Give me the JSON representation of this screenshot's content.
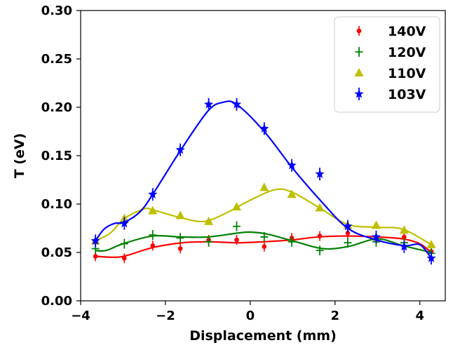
{
  "chart_data": {
    "type": "scatter",
    "title": "",
    "xlabel": "Displacement (mm)",
    "ylabel": "T (eV)",
    "xlim": [
      -4,
      4.6
    ],
    "ylim": [
      0.0,
      0.3
    ],
    "xticks": [
      -4,
      -2,
      0,
      2,
      4
    ],
    "xtick_labels": [
      "−4",
      "−2",
      "0",
      "2",
      "4"
    ],
    "yticks": [
      0.0,
      0.05,
      0.1,
      0.15,
      0.2,
      0.25,
      0.3
    ],
    "ytick_labels": [
      "0.00",
      "0.05",
      "0.10",
      "0.15",
      "0.20",
      "0.25",
      "0.30"
    ],
    "grid": false,
    "legend_position": "top-right",
    "x": [
      -3.65,
      -2.97,
      -2.3,
      -1.65,
      -0.98,
      -0.32,
      0.33,
      0.98,
      1.64,
      2.3,
      2.97,
      3.63,
      4.27
    ],
    "series": [
      {
        "name": "140V",
        "color": "#ff0000",
        "marker": "dot",
        "values": [
          0.046,
          0.044,
          0.057,
          0.054,
          0.063,
          0.063,
          0.056,
          0.065,
          0.067,
          0.07,
          0.064,
          0.066,
          0.051
        ],
        "fit": [
          [
            -3.65,
            0.046
          ],
          [
            -3.2,
            0.045
          ],
          [
            -2.9,
            0.047
          ],
          [
            -2.3,
            0.055
          ],
          [
            -1.6,
            0.06
          ],
          [
            -1.0,
            0.061
          ],
          [
            -0.3,
            0.06
          ],
          [
            0.3,
            0.061
          ],
          [
            1.0,
            0.063
          ],
          [
            1.6,
            0.066
          ],
          [
            2.3,
            0.067
          ],
          [
            3.0,
            0.066
          ],
          [
            3.6,
            0.064
          ],
          [
            4.0,
            0.059
          ],
          [
            4.27,
            0.05
          ]
        ]
      },
      {
        "name": "120V",
        "color": "#008000",
        "marker": "plus",
        "values": [
          0.054,
          0.059,
          0.068,
          0.065,
          0.061,
          0.077,
          0.066,
          0.061,
          0.052,
          0.06,
          0.061,
          0.06,
          0.049
        ],
        "fit": [
          [
            -3.65,
            0.052
          ],
          [
            -3.4,
            0.052
          ],
          [
            -3.0,
            0.059
          ],
          [
            -2.3,
            0.067
          ],
          [
            -1.65,
            0.066
          ],
          [
            -1.0,
            0.066
          ],
          [
            -0.3,
            0.07
          ],
          [
            0.0,
            0.071
          ],
          [
            0.4,
            0.069
          ],
          [
            1.0,
            0.062
          ],
          [
            1.7,
            0.054
          ],
          [
            2.3,
            0.056
          ],
          [
            3.0,
            0.064
          ],
          [
            3.6,
            0.057
          ],
          [
            4.27,
            0.05
          ]
        ]
      },
      {
        "name": "110V",
        "color": "#bfbf00",
        "marker": "triangle",
        "values": [
          0.062,
          0.085,
          0.093,
          0.088,
          0.082,
          0.097,
          0.117,
          0.11,
          0.096,
          0.078,
          0.078,
          0.073,
          0.058
        ],
        "fit": [
          [
            -3.65,
            0.062
          ],
          [
            -3.3,
            0.07
          ],
          [
            -2.97,
            0.085
          ],
          [
            -2.5,
            0.095
          ],
          [
            -2.3,
            0.094
          ],
          [
            -1.65,
            0.086
          ],
          [
            -1.1,
            0.082
          ],
          [
            -0.6,
            0.09
          ],
          [
            0.0,
            0.104
          ],
          [
            0.6,
            0.115
          ],
          [
            1.0,
            0.112
          ],
          [
            1.6,
            0.097
          ],
          [
            2.3,
            0.079
          ],
          [
            3.0,
            0.076
          ],
          [
            3.6,
            0.074
          ],
          [
            4.27,
            0.058
          ]
        ]
      },
      {
        "name": "103V",
        "color": "#0000ff",
        "marker": "star",
        "values": [
          0.062,
          0.08,
          0.11,
          0.156,
          0.203,
          0.203,
          0.178,
          0.14,
          0.131,
          0.077,
          0.066,
          0.056,
          0.044
        ],
        "fit": [
          [
            -3.65,
            0.062
          ],
          [
            -3.45,
            0.074
          ],
          [
            -3.2,
            0.08
          ],
          [
            -2.97,
            0.081
          ],
          [
            -2.6,
            0.092
          ],
          [
            -2.3,
            0.11
          ],
          [
            -1.65,
            0.155
          ],
          [
            -1.0,
            0.196
          ],
          [
            -0.65,
            0.205
          ],
          [
            -0.32,
            0.203
          ],
          [
            0.33,
            0.175
          ],
          [
            1.0,
            0.137
          ],
          [
            1.65,
            0.104
          ],
          [
            2.3,
            0.075
          ],
          [
            2.97,
            0.063
          ],
          [
            3.63,
            0.057
          ],
          [
            4.0,
            0.058
          ],
          [
            4.27,
            0.044
          ]
        ]
      }
    ]
  }
}
